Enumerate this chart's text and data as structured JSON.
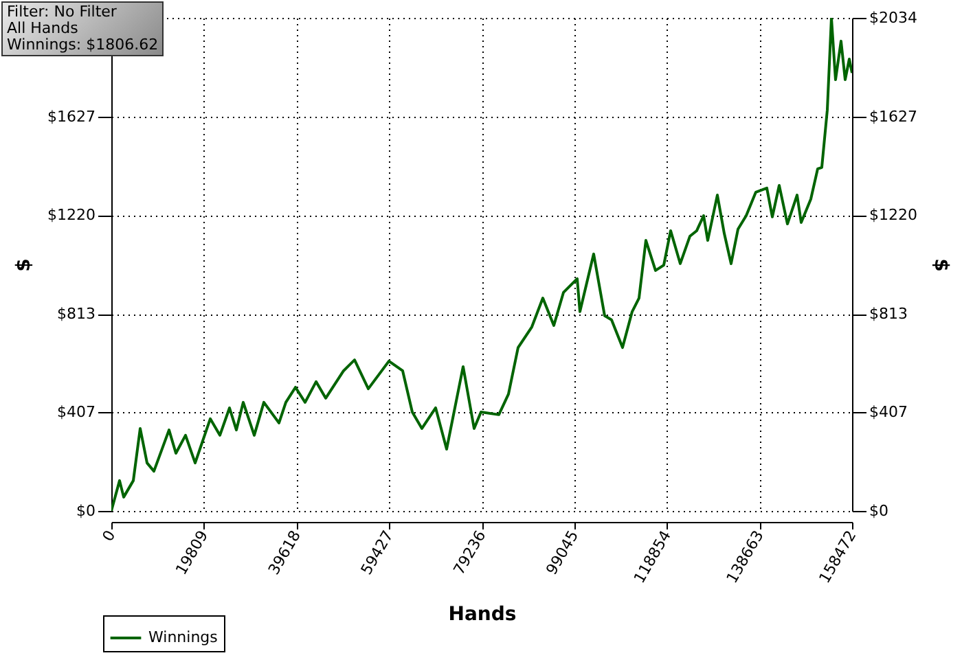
{
  "chart_data": {
    "type": "line",
    "xlabel": "Hands",
    "ylabel": "$",
    "y2label": "$",
    "annotations": [
      "Filter: No Filter",
      "All Hands",
      "Winnings: $1806.62"
    ],
    "x": [
      0,
      1764,
      2646,
      4704,
      6174,
      7644,
      9114,
      12348,
      13818,
      15876,
      17934,
      21168,
      23226,
      25284,
      26754,
      28224,
      30576,
      32634,
      35868,
      37338,
      39396,
      41454,
      43806,
      45864,
      49686,
      52038,
      54978,
      59388,
      62328,
      64386,
      66444,
      69384,
      71736,
      75264,
      77616,
      79086,
      82908,
      84966,
      87024,
      89964,
      92316,
      94668,
      96726,
      99666,
      100254,
      103194,
      105546,
      107016,
      109368,
      111426,
      112896,
      114366,
      116424,
      118188,
      119658,
      121716,
      123774,
      125244,
      126714,
      127596,
      129654,
      131124,
      132594,
      134064,
      135828,
      137886,
      140238,
      141414,
      142884,
      144648,
      146706,
      147588,
      149646,
      151116,
      151998,
      153174,
      154056,
      154938,
      156114,
      156996,
      157878,
      158472
    ],
    "series": [
      {
        "name": "Winnings",
        "color": "#006400",
        "values": [
          0,
          125,
          57,
          125,
          340,
          198,
          164,
          334,
          238,
          312,
          198,
          380,
          312,
          425,
          334,
          448,
          312,
          448,
          363,
          448,
          510,
          448,
          533,
          465,
          578,
          623,
          504,
          618,
          578,
          408,
          340,
          425,
          255,
          595,
          340,
          408,
          397,
          482,
          674,
          759,
          878,
          765,
          901,
          958,
          822,
          1060,
          805,
          788,
          674,
          822,
          878,
          1116,
          992,
          1014,
          1156,
          1020,
          1133,
          1156,
          1218,
          1116,
          1303,
          1145,
          1020,
          1162,
          1218,
          1315,
          1332,
          1213,
          1343,
          1184,
          1303,
          1190,
          1286,
          1411,
          1417,
          1654,
          2034,
          1779,
          1938,
          1779,
          1864,
          1807
        ]
      }
    ],
    "xlim": [
      0,
      158472
    ],
    "xticks": [
      0,
      19809,
      39618,
      59427,
      79236,
      99045,
      118854,
      138663,
      158472
    ],
    "ylim": [
      0,
      2034
    ],
    "yticks": [
      {
        "value": 0,
        "label": "$0"
      },
      {
        "value": 407,
        "label": "$407"
      },
      {
        "value": 813,
        "label": "$813"
      },
      {
        "value": 1220,
        "label": "$1220"
      },
      {
        "value": 1627,
        "label": "$1627"
      },
      {
        "value": 2034,
        "label": null
      }
    ],
    "y2lim": [
      0,
      2034
    ],
    "y2ticks": [
      {
        "value": 0,
        "label": "$0"
      },
      {
        "value": 407,
        "label": "$407"
      },
      {
        "value": 813,
        "label": "$813"
      },
      {
        "value": 1220,
        "label": "$1220"
      },
      {
        "value": 1627,
        "label": "$1627"
      },
      {
        "value": 2034,
        "label": "$2034"
      }
    ],
    "grid": true,
    "legend": "bottom left"
  }
}
